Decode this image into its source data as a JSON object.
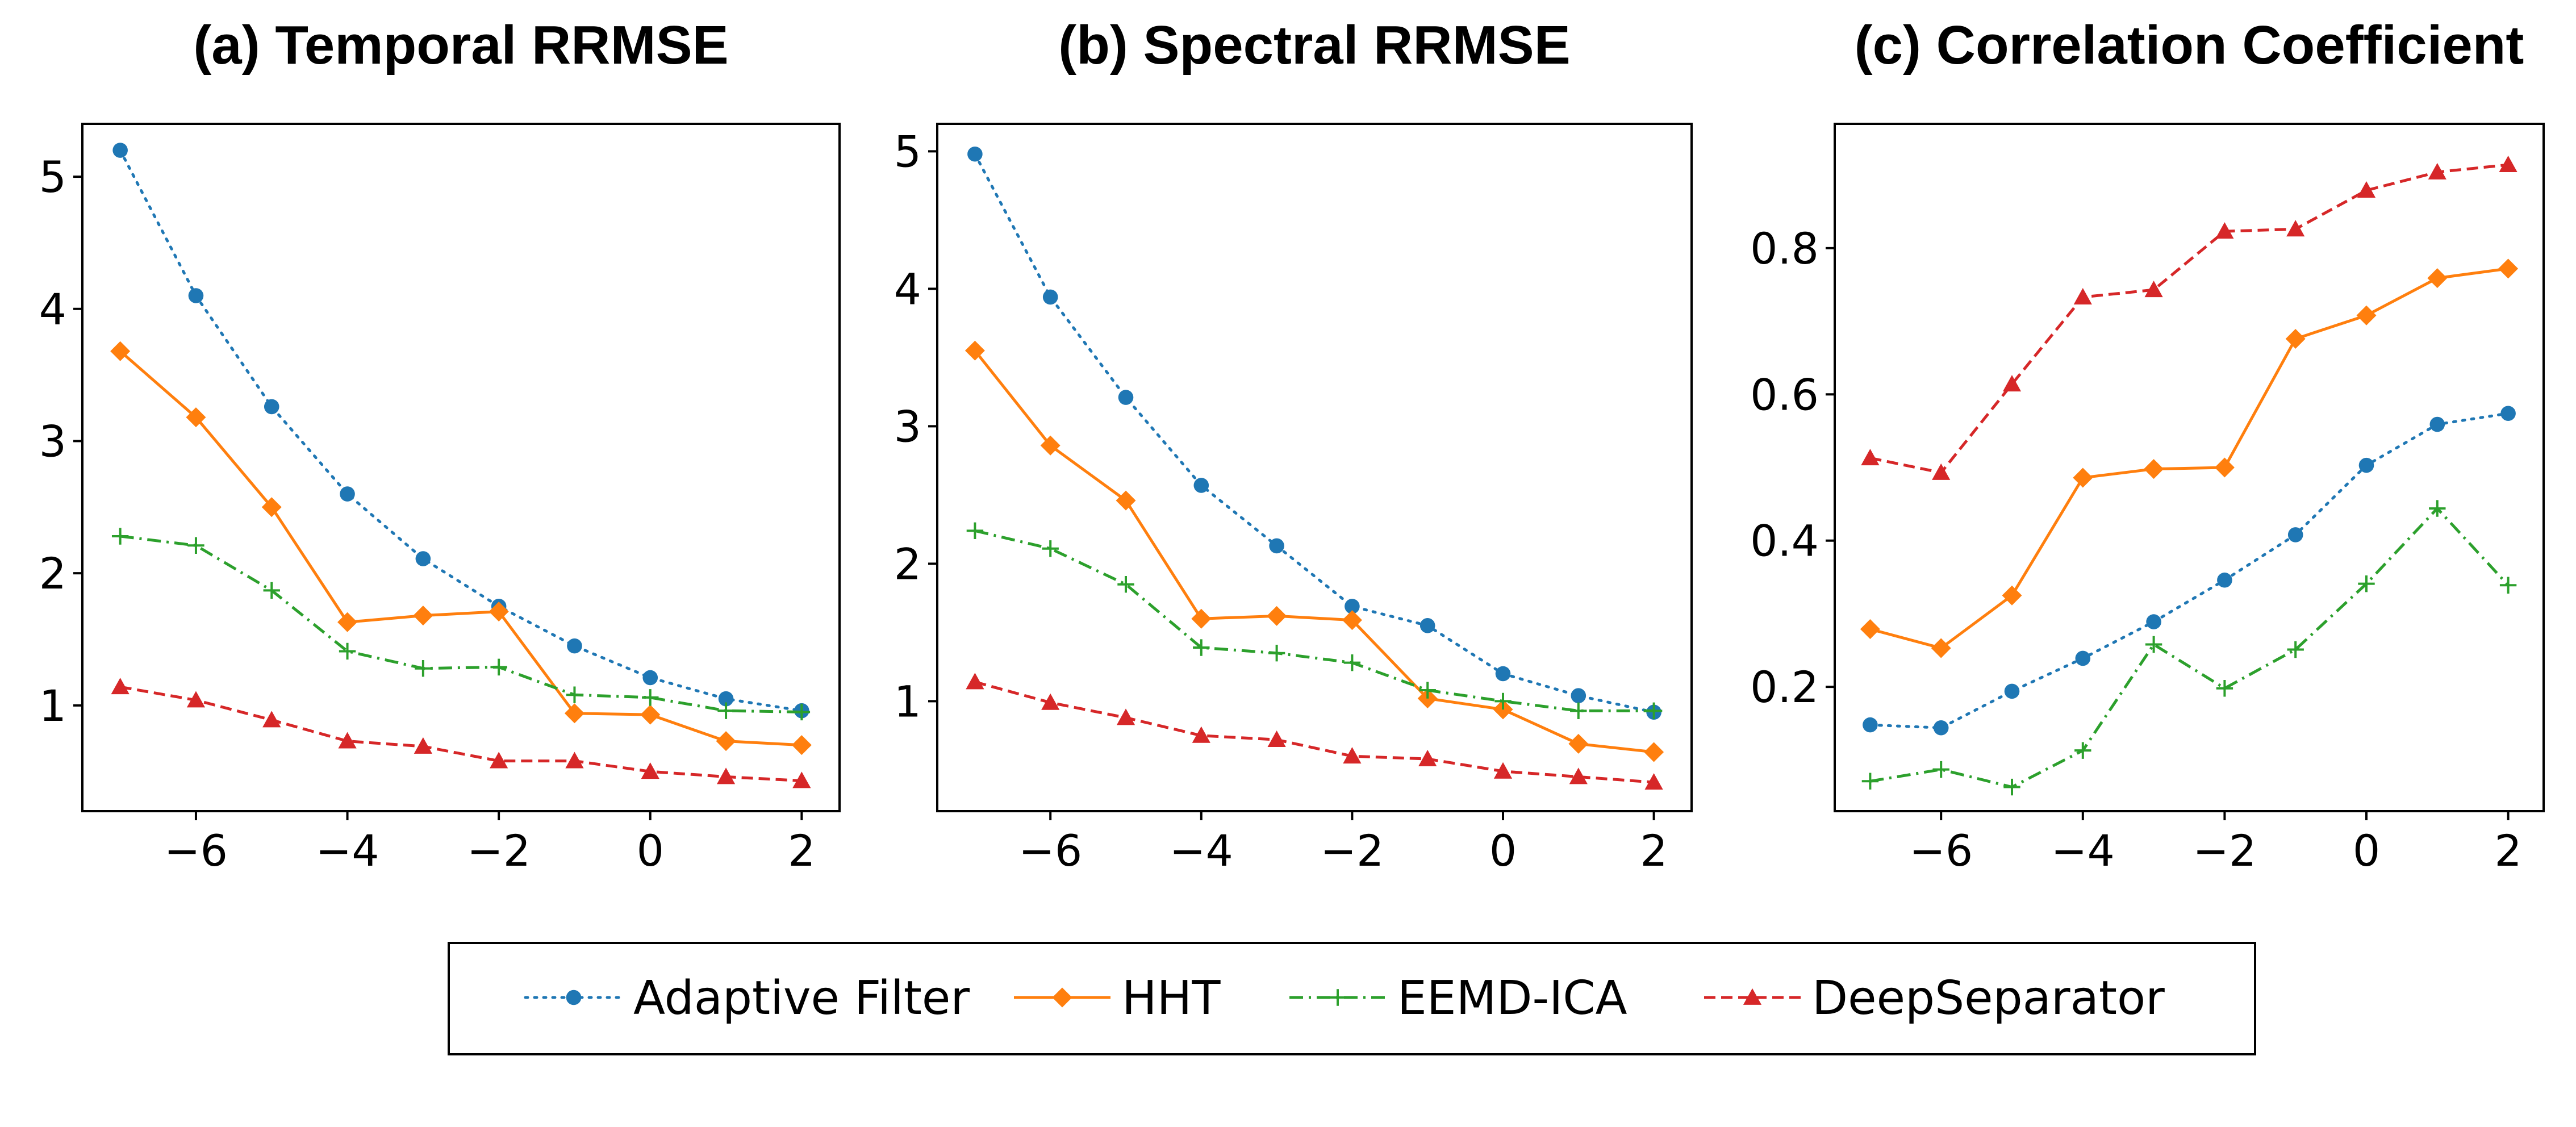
{
  "chart_data": [
    {
      "type": "line",
      "title": "(a) Temporal RRMSE",
      "xlabel": "",
      "ylabel": "",
      "x": [
        -7,
        -6,
        -5,
        -4,
        -3,
        -2,
        -1,
        0,
        1,
        2
      ],
      "xticks": [
        -6,
        -4,
        -2,
        0,
        2
      ],
      "xtick_labels": [
        "−6",
        "−4",
        "−2",
        "0",
        "2"
      ],
      "xlim": [
        -7.5,
        2.5
      ],
      "ylim": [
        0.2,
        5.4
      ],
      "yticks": [
        1,
        2,
        3,
        4,
        5
      ],
      "ytick_labels": [
        "1",
        "2",
        "3",
        "4",
        "5"
      ],
      "series": [
        {
          "name": "Adaptive Filter",
          "values": [
            5.2,
            4.1,
            3.26,
            2.6,
            2.11,
            1.75,
            1.45,
            1.21,
            1.05,
            0.96
          ]
        },
        {
          "name": "HHT",
          "values": [
            3.68,
            3.18,
            2.5,
            1.63,
            1.68,
            1.71,
            0.94,
            0.93,
            0.73,
            0.7
          ]
        },
        {
          "name": "EEMD-ICA",
          "values": [
            2.28,
            2.21,
            1.87,
            1.41,
            1.28,
            1.29,
            1.08,
            1.06,
            0.96,
            0.95
          ]
        },
        {
          "name": "DeepSeparator",
          "values": [
            1.14,
            1.04,
            0.89,
            0.73,
            0.69,
            0.58,
            0.58,
            0.5,
            0.46,
            0.43
          ]
        }
      ]
    },
    {
      "type": "line",
      "title": "(b) Spectral RRMSE",
      "xlabel": "",
      "ylabel": "",
      "x": [
        -7,
        -6,
        -5,
        -4,
        -3,
        -2,
        -1,
        0,
        1,
        2
      ],
      "xticks": [
        -6,
        -4,
        -2,
        0,
        2
      ],
      "xtick_labels": [
        "−6",
        "−4",
        "−2",
        "0",
        "2"
      ],
      "xlim": [
        -7.5,
        2.5
      ],
      "ylim": [
        0.2,
        5.2
      ],
      "yticks": [
        1,
        2,
        3,
        4,
        5
      ],
      "ytick_labels": [
        "1",
        "2",
        "3",
        "4",
        "5"
      ],
      "series": [
        {
          "name": "Adaptive Filter",
          "values": [
            4.98,
            3.94,
            3.21,
            2.57,
            2.13,
            1.69,
            1.55,
            1.2,
            1.04,
            0.92
          ]
        },
        {
          "name": "HHT",
          "values": [
            3.55,
            2.86,
            2.46,
            1.6,
            1.62,
            1.59,
            1.02,
            0.94,
            0.69,
            0.63
          ]
        },
        {
          "name": "EEMD-ICA",
          "values": [
            2.24,
            2.11,
            1.85,
            1.39,
            1.35,
            1.28,
            1.08,
            1.0,
            0.93,
            0.93
          ]
        },
        {
          "name": "DeepSeparator",
          "values": [
            1.14,
            0.99,
            0.88,
            0.75,
            0.72,
            0.6,
            0.58,
            0.49,
            0.45,
            0.41
          ]
        }
      ]
    },
    {
      "type": "line",
      "title": "(c) Correlation Coefficient",
      "xlabel": "",
      "ylabel": "",
      "x": [
        -7,
        -6,
        -5,
        -4,
        -3,
        -2,
        -1,
        0,
        1,
        2
      ],
      "xticks": [
        -6,
        -4,
        -2,
        0,
        2
      ],
      "xtick_labels": [
        "−6",
        "−4",
        "−2",
        "0",
        "2"
      ],
      "xlim": [
        -7.5,
        2.5
      ],
      "ylim": [
        0.03,
        0.97
      ],
      "yticks": [
        0.2,
        0.4,
        0.6,
        0.8
      ],
      "ytick_labels": [
        "0.2",
        "0.4",
        "0.6",
        "0.8"
      ],
      "series": [
        {
          "name": "Adaptive Filter",
          "values": [
            0.148,
            0.144,
            0.194,
            0.239,
            0.289,
            0.346,
            0.408,
            0.503,
            0.559,
            0.574
          ]
        },
        {
          "name": "HHT",
          "values": [
            0.279,
            0.253,
            0.325,
            0.486,
            0.498,
            0.5,
            0.676,
            0.708,
            0.759,
            0.772
          ]
        },
        {
          "name": "EEMD-ICA",
          "values": [
            0.071,
            0.087,
            0.063,
            0.113,
            0.258,
            0.198,
            0.251,
            0.341,
            0.444,
            0.339
          ]
        },
        {
          "name": "DeepSeparator",
          "values": [
            0.513,
            0.493,
            0.614,
            0.733,
            0.743,
            0.823,
            0.826,
            0.879,
            0.904,
            0.914
          ]
        }
      ]
    }
  ],
  "legend": {
    "position": "bottom-center",
    "entries": [
      {
        "name": "Adaptive Filter",
        "color": "#1f77b4",
        "marker": "circle",
        "line": "dotted"
      },
      {
        "name": "HHT",
        "color": "#ff7f0e",
        "marker": "diamond",
        "line": "solid"
      },
      {
        "name": "EEMD-ICA",
        "color": "#2ca02c",
        "marker": "plus",
        "line": "dashdot"
      },
      {
        "name": "DeepSeparator",
        "color": "#d62728",
        "marker": "triangle",
        "line": "dashed"
      }
    ]
  }
}
